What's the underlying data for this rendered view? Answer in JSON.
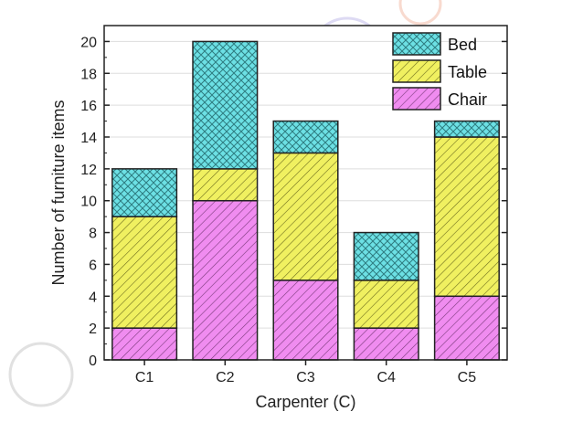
{
  "chart_data": {
    "type": "bar",
    "stacked": true,
    "xlabel": "Carpenter (C)",
    "ylabel": "Number of furniture items",
    "categories": [
      "C1",
      "C2",
      "C3",
      "C4",
      "C5"
    ],
    "ylim": [
      0,
      21
    ],
    "yticks": [
      0,
      2,
      4,
      6,
      8,
      10,
      12,
      14,
      16,
      18,
      20
    ],
    "grid": true,
    "legend_position": "top-right",
    "series": [
      {
        "name": "Chair",
        "values": [
          2,
          10,
          5,
          2,
          4
        ],
        "color": "#f08cf0",
        "hatch": "diagonal"
      },
      {
        "name": "Table",
        "values": [
          7,
          2,
          8,
          3,
          10
        ],
        "color": "#f0f060",
        "hatch": "diagonal"
      },
      {
        "name": "Bed",
        "values": [
          3,
          8,
          2,
          3,
          1
        ],
        "color": "#6ce0e4",
        "hatch": "crosshatch"
      }
    ],
    "legend_order": [
      "Bed",
      "Table",
      "Chair"
    ]
  }
}
